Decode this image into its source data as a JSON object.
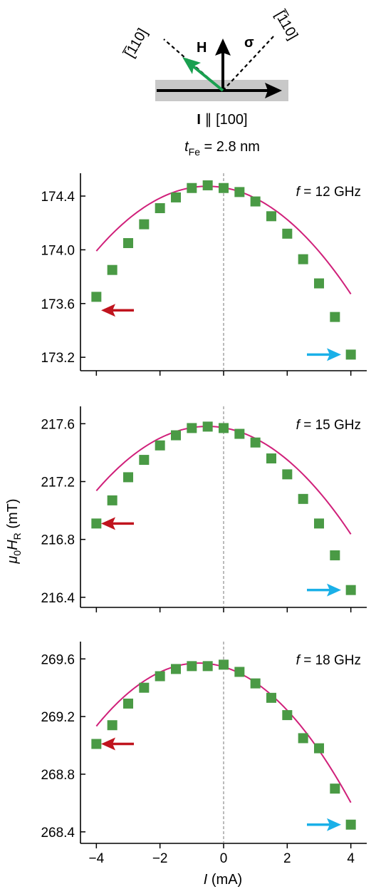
{
  "diagram": {
    "dir_left": "[̅110]",
    "dir_right": "[̅110]",
    "h_label": "H",
    "sigma_label": "σ",
    "current_label": "I",
    "current_label_rest": " ∥ [100]",
    "thickness_var": "t",
    "thickness_sub": "Fe",
    "thickness_rest": " = 2.8 nm",
    "colors": {
      "h_arrow": "#1aa050",
      "substrate": "#c8c8c8"
    }
  },
  "chart_data": {
    "type": "scatter",
    "xlabel_var": "I",
    "xlabel_unit": " (mA)",
    "ylabel_var1": "μ",
    "ylabel_sub1": "0",
    "ylabel_var2": "H",
    "ylabel_sub2": "R",
    "ylabel_unit": " (mT)",
    "xlim": [
      -4.5,
      4.5
    ],
    "xticks": [
      -4,
      -2,
      0,
      2,
      4
    ],
    "xtick_labels": [
      "−4",
      "−2",
      "0",
      "2",
      "4"
    ],
    "colors": {
      "markers": "#4a9a45",
      "fit": "#d0207a",
      "arrow_left": "#c0141e",
      "arrow_right": "#1ab0e8",
      "zero_line": "#777777"
    },
    "panels": [
      {
        "freq_var": "f",
        "freq_rest": " = 12 GHz",
        "ylim": [
          173.1,
          174.57
        ],
        "yticks": [
          173.2,
          173.6,
          174.0,
          174.4
        ],
        "ytick_labels": [
          "173.2",
          "173.6",
          "174.0",
          "174.4"
        ],
        "x": [
          -4,
          -3.5,
          -3,
          -2.5,
          -2,
          -1.5,
          -1,
          -0.5,
          0,
          0.5,
          1,
          1.5,
          2,
          2.5,
          3,
          3.5,
          4
        ],
        "y": [
          173.65,
          173.85,
          174.05,
          174.19,
          174.31,
          174.39,
          174.46,
          174.48,
          174.46,
          174.43,
          174.36,
          174.25,
          174.12,
          173.93,
          173.75,
          173.5,
          173.22
        ],
        "fit": [
          -0.0395,
          -0.04,
          174.463
        ],
        "arrow_left_y": 173.55,
        "arrow_right_y": 173.22
      },
      {
        "freq_var": "f",
        "freq_rest": " = 15 GHz",
        "ylim": [
          216.33,
          217.72
        ],
        "yticks": [
          216.4,
          216.8,
          217.2,
          217.6
        ],
        "ytick_labels": [
          "216.4",
          "216.8",
          "217.2",
          "217.6"
        ],
        "x": [
          -4,
          -3.5,
          -3,
          -2.5,
          -2,
          -1.5,
          -1,
          -0.5,
          0,
          0.5,
          1,
          1.5,
          2,
          2.5,
          3,
          3.5,
          4
        ],
        "y": [
          216.91,
          217.07,
          217.23,
          217.35,
          217.45,
          217.52,
          217.57,
          217.58,
          217.57,
          217.53,
          217.47,
          217.36,
          217.25,
          217.08,
          216.91,
          216.69,
          216.45
        ],
        "fit": [
          -0.0366,
          -0.0375,
          217.572
        ],
        "arrow_left_y": 216.91,
        "arrow_right_y": 216.45
      },
      {
        "freq_var": "f",
        "freq_rest": " = 18 GHz",
        "ylim": [
          268.32,
          269.72
        ],
        "yticks": [
          268.4,
          268.8,
          269.2,
          269.6
        ],
        "ytick_labels": [
          "268.4",
          "268.8",
          "269.2",
          "269.6"
        ],
        "x": [
          -4,
          -3.5,
          -3,
          -2.5,
          -2,
          -1.5,
          -1,
          -0.5,
          0,
          0.5,
          1,
          1.5,
          2,
          2.5,
          3,
          3.5,
          4
        ],
        "y": [
          269.01,
          269.14,
          269.29,
          269.4,
          269.48,
          269.53,
          269.55,
          269.55,
          269.56,
          269.51,
          269.43,
          269.33,
          269.21,
          269.05,
          268.98,
          268.7,
          268.45
        ],
        "fit": [
          -0.0423,
          -0.0663,
          269.545
        ],
        "arrow_left_y": 269.01,
        "arrow_right_y": 268.45
      }
    ]
  }
}
